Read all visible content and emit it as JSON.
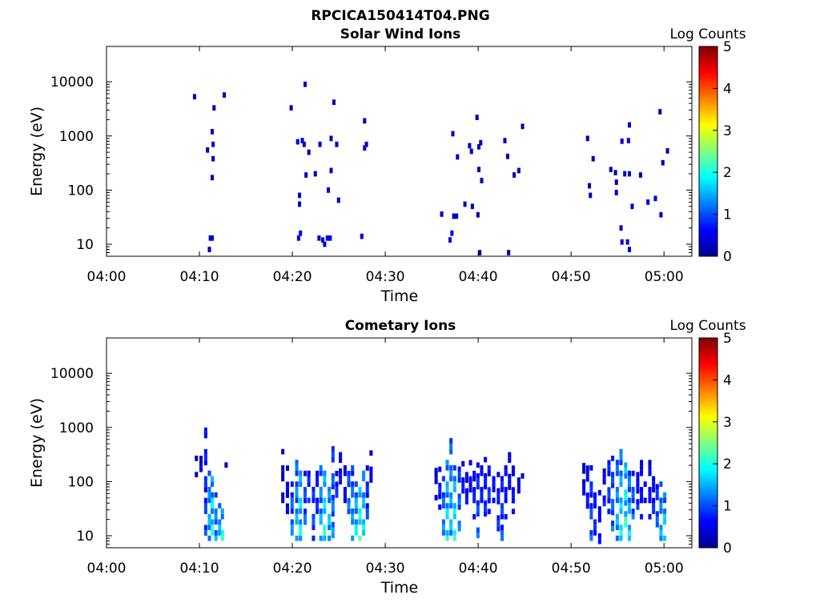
{
  "figure": {
    "filename": "RPCICA150414T04.PNG"
  },
  "colorbar": {
    "label": "Log Counts",
    "ticks": [
      "5",
      "4",
      "3",
      "2",
      "1",
      "0"
    ],
    "colors": [
      "#00008f",
      "#0000ff",
      "#007fff",
      "#00ffff",
      "#7fff7f",
      "#ffff00",
      "#ff7f00",
      "#ff0000",
      "#7f0000"
    ]
  },
  "chart_data": [
    {
      "type": "heatmap",
      "title": "Solar Wind Ions",
      "xlabel": "Time",
      "ylabel": "Energy (eV)",
      "x_ticks": [
        "04:00",
        "04:10",
        "04:20",
        "04:30",
        "04:40",
        "04:50",
        "05:00"
      ],
      "y_ticks": [
        "10",
        "100",
        "1000",
        "10000"
      ],
      "y_scale": "log",
      "ylim": [
        6,
        45000
      ],
      "xlim_minutes": [
        0,
        63
      ],
      "colorbar_range": [
        0,
        5
      ],
      "cells": [
        [
          9.3,
          5300,
          0.2
        ],
        [
          11.0,
          13,
          0.4
        ],
        [
          11.2,
          13,
          0.5
        ],
        [
          10.9,
          8,
          0.2
        ],
        [
          10.7,
          550,
          0.3
        ],
        [
          11.3,
          700,
          0.4
        ],
        [
          11.2,
          1200,
          0.3
        ],
        [
          11.4,
          3300,
          0.2
        ],
        [
          11.2,
          170,
          0.2
        ],
        [
          11.3,
          380,
          0.2
        ],
        [
          12.5,
          5700,
          0.3
        ],
        [
          19.7,
          3300,
          0.3
        ],
        [
          20.5,
          13,
          0.5
        ],
        [
          20.7,
          16,
          0.6
        ],
        [
          20.6,
          80,
          0.4
        ],
        [
          20.6,
          55,
          0.3
        ],
        [
          20.4,
          780,
          0.4
        ],
        [
          20.9,
          820,
          0.3
        ],
        [
          21.1,
          700,
          0.3
        ],
        [
          21.2,
          9000,
          0.3
        ],
        [
          21.3,
          190,
          0.3
        ],
        [
          21.6,
          500,
          0.2
        ],
        [
          22.3,
          200,
          0.2
        ],
        [
          22.7,
          13,
          0.3
        ],
        [
          23.1,
          12,
          0.5
        ],
        [
          23.3,
          10,
          0.4
        ],
        [
          22.8,
          700,
          0.4
        ],
        [
          23.6,
          13,
          0.6
        ],
        [
          23.9,
          13,
          0.5
        ],
        [
          23.7,
          100,
          0.3
        ],
        [
          24.0,
          230,
          0.3
        ],
        [
          24.0,
          900,
          0.2
        ],
        [
          24.3,
          4200,
          0.3
        ],
        [
          24.8,
          65,
          0.2
        ],
        [
          24.6,
          700,
          0.2
        ],
        [
          27.3,
          14,
          0.5
        ],
        [
          27.6,
          600,
          0.4
        ],
        [
          27.8,
          700,
          0.3
        ],
        [
          27.6,
          1900,
          0.2
        ],
        [
          35.9,
          36,
          0.3
        ],
        [
          36.8,
          12,
          0.5
        ],
        [
          37.0,
          16,
          0.6
        ],
        [
          37.2,
          33,
          0.3
        ],
        [
          37.5,
          33,
          0.4
        ],
        [
          37.1,
          1100,
          0.2
        ],
        [
          37.6,
          410,
          0.3
        ],
        [
          38.4,
          55,
          0.3
        ],
        [
          38.9,
          660,
          0.3
        ],
        [
          39.1,
          520,
          0.3
        ],
        [
          39.2,
          50,
          0.3
        ],
        [
          39.7,
          2200,
          0.2
        ],
        [
          40.0,
          7,
          0.2
        ],
        [
          39.9,
          630,
          0.4
        ],
        [
          40.1,
          750,
          0.3
        ],
        [
          39.9,
          240,
          0.2
        ],
        [
          40.2,
          150,
          0.2
        ],
        [
          39.8,
          35,
          0.3
        ],
        [
          42.7,
          820,
          0.3
        ],
        [
          43.0,
          420,
          0.2
        ],
        [
          43.1,
          7,
          0.2
        ],
        [
          43.7,
          190,
          0.2
        ],
        [
          44.2,
          230,
          0.2
        ],
        [
          44.6,
          1500,
          0.2
        ],
        [
          51.6,
          900,
          0.2
        ],
        [
          51.8,
          120,
          0.2
        ],
        [
          51.9,
          80,
          0.2
        ],
        [
          52.2,
          380,
          0.2
        ],
        [
          54.1,
          240,
          0.3
        ],
        [
          54.6,
          210,
          0.2
        ],
        [
          54.7,
          140,
          0.3
        ],
        [
          54.7,
          90,
          0.3
        ],
        [
          55.2,
          20,
          0.5
        ],
        [
          55.3,
          11,
          0.4
        ],
        [
          55.3,
          800,
          0.4
        ],
        [
          55.6,
          200,
          0.3
        ],
        [
          55.9,
          11,
          0.5
        ],
        [
          56.1,
          8,
          0.4
        ],
        [
          56.0,
          820,
          0.5
        ],
        [
          56.1,
          1600,
          0.3
        ],
        [
          56.4,
          50,
          0.3
        ],
        [
          56.1,
          200,
          0.3
        ],
        [
          57.3,
          190,
          0.3
        ],
        [
          58.1,
          60,
          0.3
        ],
        [
          58.9,
          70,
          0.3
        ],
        [
          59.4,
          2800,
          0.2
        ],
        [
          59.5,
          35,
          0.3
        ],
        [
          59.7,
          320,
          0.2
        ],
        [
          60.2,
          530,
          0.2
        ]
      ]
    },
    {
      "type": "heatmap",
      "title": "Cometary Ions",
      "xlabel": "Time",
      "ylabel": "Energy (eV)",
      "x_ticks": [
        "04:00",
        "04:10",
        "04:20",
        "04:30",
        "04:40",
        "04:50",
        "05:00"
      ],
      "y_ticks": [
        "10",
        "100",
        "1000",
        "10000"
      ],
      "y_scale": "log",
      "ylim": [
        6,
        45000
      ],
      "xlim_minutes": [
        0,
        63
      ],
      "colorbar_range": [
        0,
        5
      ],
      "columns": [
        [
          9.5,
          120,
          260,
          0.3
        ],
        [
          10.0,
          150,
          300,
          0.4
        ],
        [
          10.5,
          10,
          900,
          0.8
        ],
        [
          10.9,
          8,
          150,
          1.3
        ],
        [
          11.2,
          8,
          120,
          1.7
        ],
        [
          11.6,
          8,
          60,
          1.2
        ],
        [
          12.0,
          8,
          40,
          1.3
        ],
        [
          12.3,
          8,
          26,
          1.6
        ],
        [
          12.7,
          180,
          320,
          0.3
        ],
        [
          18.8,
          40,
          320,
          0.3
        ],
        [
          19.3,
          25,
          180,
          0.4
        ],
        [
          19.8,
          8,
          100,
          1.1
        ],
        [
          20.3,
          8,
          300,
          1.3
        ],
        [
          20.7,
          8,
          200,
          1.6
        ],
        [
          21.2,
          10,
          150,
          1.0
        ],
        [
          21.6,
          40,
          140,
          0.8
        ],
        [
          22.1,
          8,
          100,
          0.9
        ],
        [
          22.5,
          20,
          180,
          0.7
        ],
        [
          22.9,
          8,
          200,
          1.3
        ],
        [
          23.3,
          8,
          150,
          1.7
        ],
        [
          23.8,
          8,
          110,
          1.4
        ],
        [
          24.2,
          9,
          400,
          1.1
        ],
        [
          24.6,
          50,
          140,
          0.7
        ],
        [
          25.0,
          70,
          280,
          0.6
        ],
        [
          25.5,
          40,
          160,
          0.5
        ],
        [
          25.9,
          25,
          250,
          1.0
        ],
        [
          26.3,
          8,
          160,
          1.2
        ],
        [
          26.7,
          8,
          100,
          1.5
        ],
        [
          27.1,
          8,
          70,
          1.8
        ],
        [
          27.5,
          8,
          130,
          1.5
        ],
        [
          27.9,
          20,
          160,
          0.8
        ],
        [
          28.3,
          60,
          320,
          0.5
        ],
        [
          35.3,
          45,
          250,
          0.3
        ],
        [
          35.7,
          30,
          160,
          0.7
        ],
        [
          36.1,
          8,
          120,
          1.1
        ],
        [
          36.5,
          8,
          240,
          1.5
        ],
        [
          36.9,
          8,
          600,
          1.3
        ],
        [
          37.3,
          8,
          200,
          1.6
        ],
        [
          37.8,
          12,
          160,
          1.0
        ],
        [
          38.2,
          60,
          200,
          0.6
        ],
        [
          38.6,
          30,
          150,
          0.6
        ],
        [
          39.0,
          50,
          200,
          0.5
        ],
        [
          39.4,
          20,
          140,
          0.7
        ],
        [
          39.8,
          9,
          200,
          0.9
        ],
        [
          40.2,
          40,
          160,
          0.6
        ],
        [
          40.6,
          18,
          230,
          0.7
        ],
        [
          41.0,
          25,
          170,
          0.8
        ],
        [
          41.5,
          40,
          200,
          0.6
        ],
        [
          42.0,
          12,
          150,
          0.7
        ],
        [
          42.4,
          8,
          120,
          0.9
        ],
        [
          42.8,
          20,
          200,
          0.6
        ],
        [
          43.2,
          70,
          300,
          0.5
        ],
        [
          43.6,
          25,
          190,
          0.6
        ],
        [
          44.2,
          60,
          160,
          0.4
        ],
        [
          44.6,
          90,
          140,
          0.3
        ],
        [
          51.2,
          35,
          220,
          0.4
        ],
        [
          51.6,
          25,
          200,
          0.6
        ],
        [
          52.0,
          8,
          160,
          0.9
        ],
        [
          52.4,
          8,
          100,
          0.7
        ],
        [
          52.9,
          7,
          60,
          0.5
        ],
        [
          53.4,
          35,
          150,
          0.6
        ],
        [
          53.9,
          25,
          330,
          0.8
        ],
        [
          54.3,
          12,
          250,
          1.0
        ],
        [
          54.8,
          8,
          220,
          1.3
        ],
        [
          55.2,
          8,
          330,
          1.5
        ],
        [
          55.7,
          9,
          300,
          1.7
        ],
        [
          56.1,
          8,
          140,
          1.4
        ],
        [
          56.5,
          20,
          140,
          1.0
        ],
        [
          57.0,
          30,
          120,
          0.7
        ],
        [
          57.4,
          20,
          250,
          0.6
        ],
        [
          57.8,
          40,
          100,
          0.5
        ],
        [
          58.3,
          20,
          220,
          0.6
        ],
        [
          58.7,
          20,
          130,
          0.7
        ],
        [
          59.1,
          9,
          110,
          0.9
        ],
        [
          59.5,
          8,
          100,
          1.2
        ],
        [
          59.9,
          8,
          60,
          1.5
        ]
      ]
    }
  ]
}
